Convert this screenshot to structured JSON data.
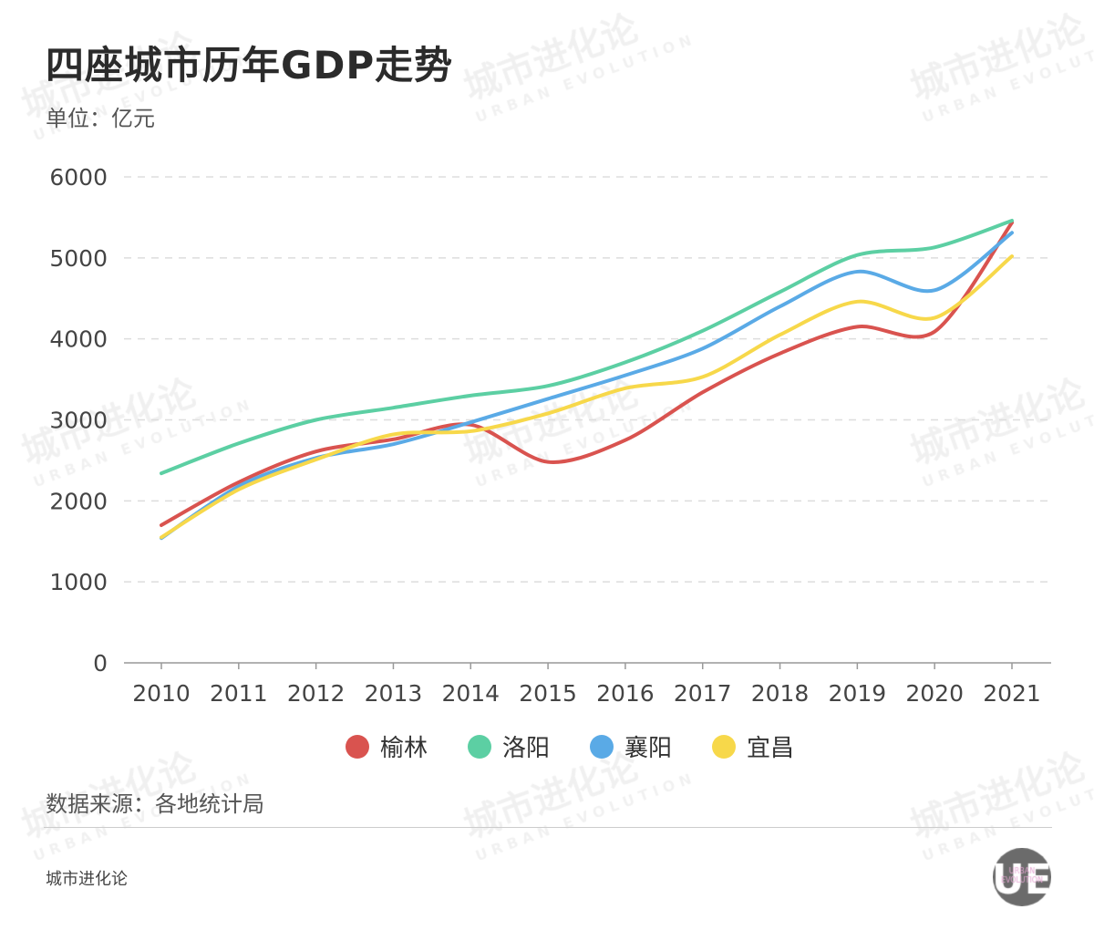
{
  "title": "四座城市历年GDP走势",
  "unit_label": "单位：亿元",
  "source": "数据来源：各地统计局",
  "brand": "城市进化论",
  "watermark": {
    "cn": "城市进化论",
    "en": "URBAN EVOLUTION"
  },
  "logo": {
    "letters": "UE",
    "sub": "URBAN EVOLUTION"
  },
  "chart_data": {
    "type": "line",
    "title": "四座城市历年GDP走势",
    "ylabel": "单位：亿元",
    "xlabel": "",
    "categories": [
      "2010",
      "2011",
      "2012",
      "2013",
      "2014",
      "2015",
      "2016",
      "2017",
      "2018",
      "2019",
      "2020",
      "2021"
    ],
    "ylim": [
      0,
      6000
    ],
    "yticks": [
      0,
      1000,
      2000,
      3000,
      4000,
      5000,
      6000
    ],
    "grid": true,
    "legend_position": "bottom",
    "series": [
      {
        "name": "榆林",
        "color": "#d9534f",
        "values": [
          1700,
          2230,
          2610,
          2760,
          2940,
          2480,
          2750,
          3340,
          3820,
          4150,
          4090,
          5435
        ]
      },
      {
        "name": "洛阳",
        "color": "#5ccfa3",
        "values": [
          2340,
          2710,
          3000,
          3150,
          3300,
          3420,
          3710,
          4100,
          4580,
          5035,
          5130,
          5460
        ]
      },
      {
        "name": "襄阳",
        "color": "#5aaae6",
        "values": [
          1540,
          2180,
          2530,
          2700,
          2970,
          3260,
          3550,
          3880,
          4400,
          4830,
          4600,
          5310
        ]
      },
      {
        "name": "宜昌",
        "color": "#f7d84a",
        "values": [
          1550,
          2140,
          2510,
          2820,
          2860,
          3080,
          3390,
          3530,
          4050,
          4460,
          4260,
          5020
        ]
      }
    ]
  }
}
